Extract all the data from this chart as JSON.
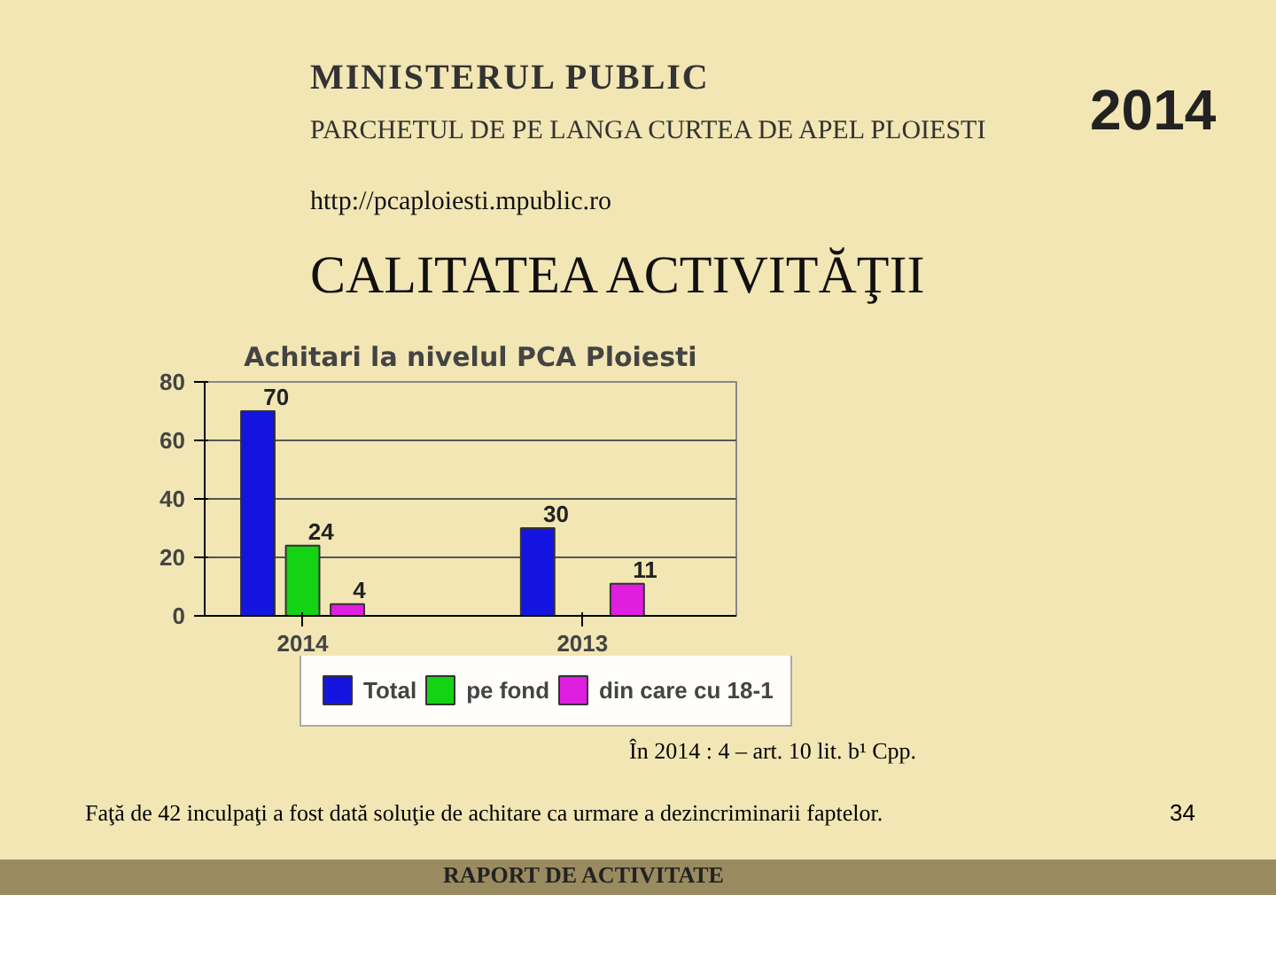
{
  "chart_data": {
    "type": "bar",
    "title": "Achitari la nivelul PCA Ploiesti",
    "subtitle": "CALITATEA ACTIVITĂŢII",
    "annotations": [
      "MINISTERUL PUBLIC",
      "PARCHETUL DE PE LANGA CURTEA DE APEL PLOIESTI",
      "http://pcaploiesti.mpublic.ro",
      "2014",
      "În 2014 :   4 – art. 10 lit. b¹ Cpp.",
      "Faţă de 42 inculpaţi a fost dată soluţie de achitare ca urmare a dezincriminarii faptelor.",
      "34",
      "RAPORT DE ACTIVITATE"
    ],
    "categories": [
      "2014",
      "2013"
    ],
    "series": [
      {
        "name": "Total",
        "color": "#1414e0",
        "values": [
          70,
          30
        ]
      },
      {
        "name": "pe fond",
        "color": "#14d214",
        "values": [
          24,
          null
        ]
      },
      {
        "name": "din care cu 18-1",
        "color": "#e01ee0",
        "values": [
          4,
          11
        ]
      }
    ],
    "ylim": [
      0,
      80
    ],
    "yticks": [
      0,
      20,
      40,
      60,
      80
    ],
    "grid": "y",
    "legend": "bottom",
    "data_labels": true
  }
}
